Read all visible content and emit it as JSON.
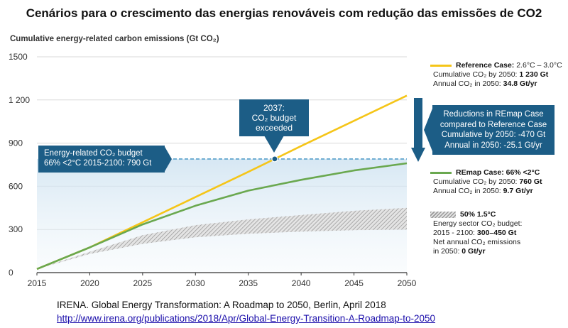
{
  "page_title": "Cenários para o crescimento das energias renováveis com redução das emissões de CO2",
  "colors": {
    "reference": "#f5c518",
    "remap": "#6aa84f",
    "budget_box": "#1c5d86",
    "budget_line": "#3a8fc1",
    "hatch": "#9a9a9a",
    "axis": "#333333"
  },
  "chart_data": {
    "type": "line",
    "ylabel": "Cumulative energy-related carbon emissions (Gt CO₂)",
    "x": [
      2015,
      2020,
      2025,
      2030,
      2035,
      2040,
      2045,
      2050
    ],
    "x_ticks": [
      "2015",
      "2020",
      "2025",
      "2030",
      "2035",
      "2040",
      "2045",
      "2050"
    ],
    "y_ticks": [
      "0",
      "300",
      "600",
      "900",
      "1 200",
      "1500"
    ],
    "ylim": [
      0,
      1500
    ],
    "xlim": [
      2015,
      2050
    ],
    "grid": true,
    "series": [
      {
        "name": "Reference Case",
        "x": [
          2015,
          2020,
          2025,
          2030,
          2035,
          2040,
          2045,
          2050
        ],
        "values": [
          25,
          175,
          350,
          525,
          700,
          880,
          1055,
          1230
        ]
      },
      {
        "name": "REmap Case",
        "x": [
          2015,
          2020,
          2025,
          2030,
          2035,
          2040,
          2045,
          2050
        ],
        "values": [
          25,
          175,
          335,
          465,
          570,
          645,
          710,
          760
        ]
      }
    ],
    "band": {
      "name": "50% 1.5°C",
      "x": [
        2015,
        2020,
        2025,
        2030,
        2035,
        2040,
        2045,
        2050
      ],
      "lower": [
        25,
        130,
        200,
        245,
        270,
        285,
        295,
        300
      ],
      "upper": [
        25,
        145,
        260,
        330,
        370,
        400,
        430,
        450
      ]
    },
    "budget_line": {
      "value": 790,
      "x_start": 2015,
      "x_end": 2050
    },
    "marker": {
      "x": 2037.5,
      "y": 790
    }
  },
  "annotations": {
    "budget_box_line1": "Energy-related CO₂ budget",
    "budget_box_line2": "66% <2°C 2015-2100: 790 Gt",
    "exceeded_line1": "2037:",
    "exceeded_line2": "CO₂ budget",
    "exceeded_line3": "exceeded",
    "reductions_line1": "Reductions in REmap Case",
    "reductions_line2": "compared to Reference Case",
    "reductions_line3": "Cumulative by 2050: -470 Gt",
    "reductions_line4": "Annual in 2050: -25.1 Gt/yr"
  },
  "legend": {
    "reference": {
      "title": "Reference Case:",
      "title_rest": "2.6°C – 3.0°C",
      "line2_label": "Cumulative CO₂ by 2050:",
      "line2_value": "1 230 Gt",
      "line3_label": "Annual CO₂ in 2050:",
      "line3_value": "34.8 Gt/yr"
    },
    "remap": {
      "title": "REmap Case: 66% <2°C",
      "line2_label": "Cumulative CO₂ by 2050:",
      "line2_value": "760 Gt",
      "line3_label": "Annual CO₂ in 2050:",
      "line3_value": "9.7 Gt/yr"
    },
    "band": {
      "title": "50% 1.5°C",
      "line2": "Energy sector CO₂ budget:",
      "line3_label": "2015 - 2100:",
      "line3_value": "300–450 Gt",
      "line4": "Net annual CO₂ emissions",
      "line5_label": "in 2050:",
      "line5_value": "0 Gt/yr"
    }
  },
  "source": {
    "citation": "IRENA. Global Energy Transformation: A Roadmap to 2050, Berlin, April 2018",
    "link": "http://www.irena.org/publications/2018/Apr/Global-Energy-Transition-A-Roadmap-to-2050"
  }
}
